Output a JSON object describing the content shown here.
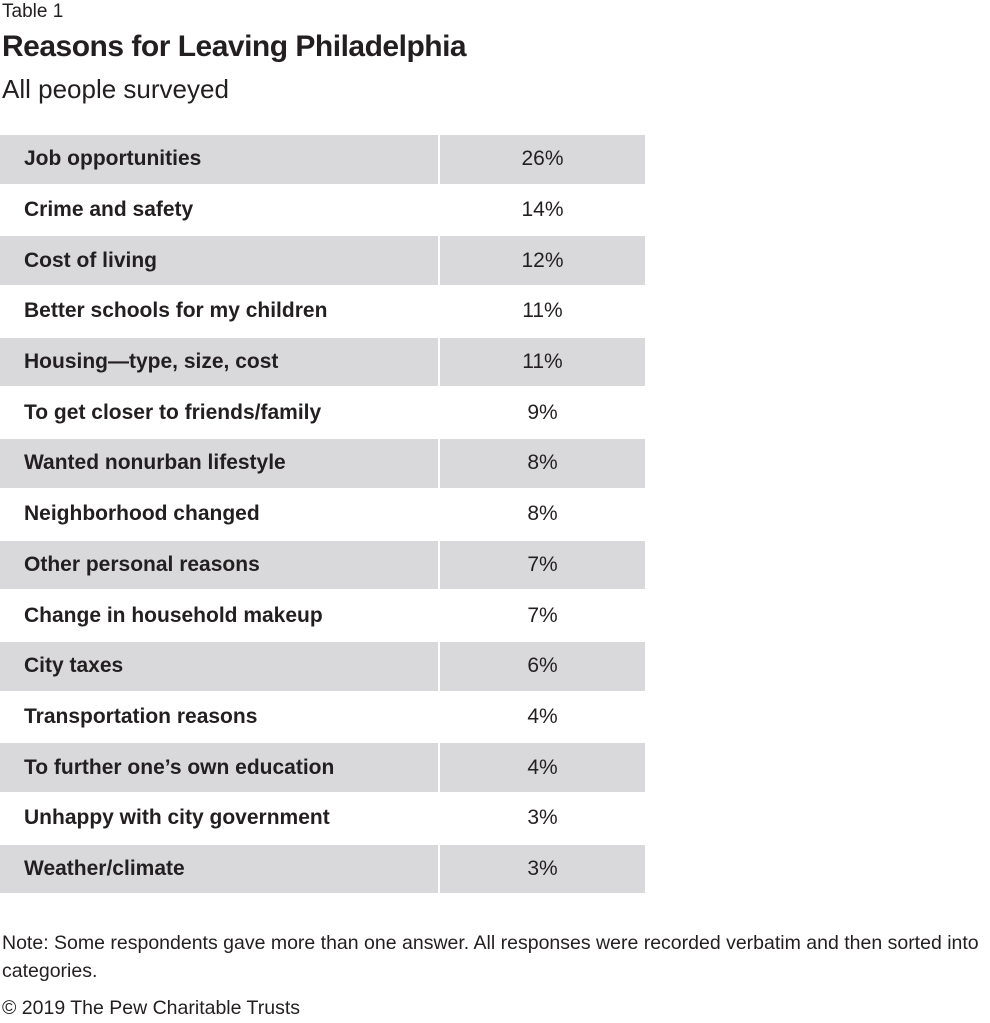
{
  "header": {
    "label": "Table 1",
    "title": "Reasons for Leaving Philadelphia",
    "subtitle": "All people surveyed"
  },
  "table": {
    "rows": [
      [
        "Job opportunities",
        "26%"
      ],
      [
        "Crime and safety",
        "14%"
      ],
      [
        "Cost of living",
        "12%"
      ],
      [
        "Better schools for my children",
        "11%"
      ],
      [
        "Housing—type, size, cost",
        "11%"
      ],
      [
        "To get closer to friends/family",
        "9%"
      ],
      [
        "Wanted nonurban lifestyle",
        "8%"
      ],
      [
        "Neighborhood changed",
        "8%"
      ],
      [
        "Other personal reasons",
        "7%"
      ],
      [
        "Change in household makeup",
        "7%"
      ],
      [
        "City taxes",
        "6%"
      ],
      [
        "Transportation reasons",
        "4%"
      ],
      [
        "To further one’s own education",
        "4%"
      ],
      [
        "Unhappy with city government",
        "3%"
      ],
      [
        "Weather/climate",
        "3%"
      ]
    ]
  },
  "footer": {
    "note": "Note: Some respondents gave more than one answer. All responses were recorded verbatim and then sorted into categories.",
    "copyright": "© 2019 The Pew Charitable Trusts"
  }
}
